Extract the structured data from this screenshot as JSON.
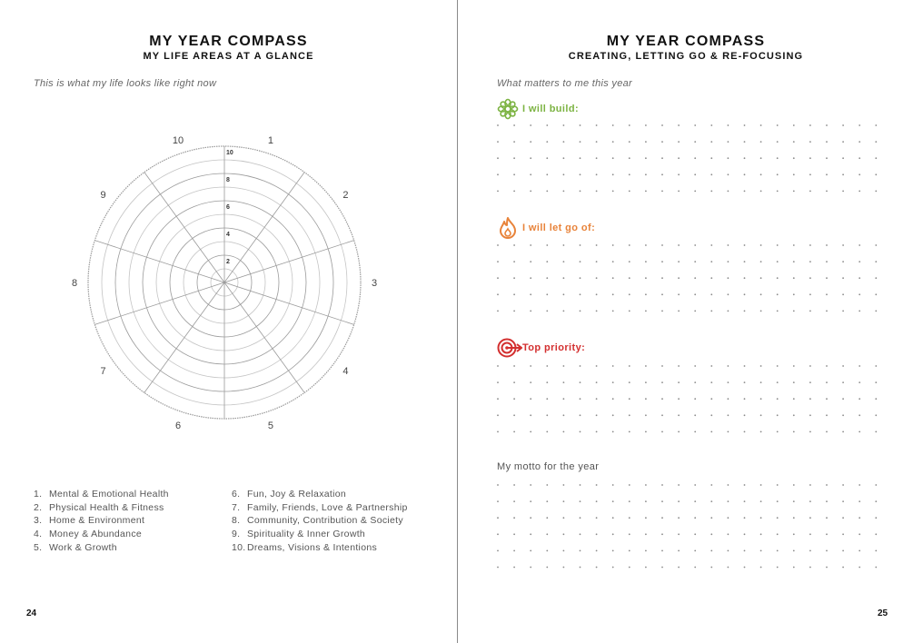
{
  "left_page": {
    "title": "MY YEAR COMPASS",
    "subtitle": "MY LIFE AREAS AT A GLANCE",
    "intro": "This is what my life looks like right now",
    "wheel": {
      "sector_labels": [
        "1",
        "2",
        "3",
        "4",
        "5",
        "6",
        "7",
        "8",
        "9",
        "10"
      ],
      "scale_labels": [
        "2",
        "4",
        "6",
        "8",
        "10"
      ]
    },
    "legend": [
      {
        "num": "1.",
        "label": "Mental & Emotional Health"
      },
      {
        "num": "2.",
        "label": "Physical Health & Fitness"
      },
      {
        "num": "3.",
        "label": "Home & Environment"
      },
      {
        "num": "4.",
        "label": "Money & Abundance"
      },
      {
        "num": "5.",
        "label": "Work & Growth"
      },
      {
        "num": "6.",
        "label": "Fun, Joy & Relaxation"
      },
      {
        "num": "7.",
        "label": "Family, Friends, Love & Partnership"
      },
      {
        "num": "8.",
        "label": "Community, Contribution & Society"
      },
      {
        "num": "9.",
        "label": "Spirituality & Inner Growth"
      },
      {
        "num": "10.",
        "label": "Dreams, Visions & Intentions"
      }
    ],
    "page_number": "24"
  },
  "right_page": {
    "title": "MY YEAR COMPASS",
    "subtitle": "CREATING, LETTING GO & RE-FOCUSING",
    "intro": "What matters to me this year",
    "sections": {
      "build": {
        "label": "I will build:",
        "color": "#7cb342",
        "icon": "flower-icon"
      },
      "let_go": {
        "label": "I will let go of:",
        "color": "#e8833a",
        "icon": "flame-icon"
      },
      "priority": {
        "label": "Top priority:",
        "color": "#d32f2f",
        "icon": "target-icon"
      }
    },
    "motto_label": "My motto for the year",
    "page_number": "25"
  }
}
